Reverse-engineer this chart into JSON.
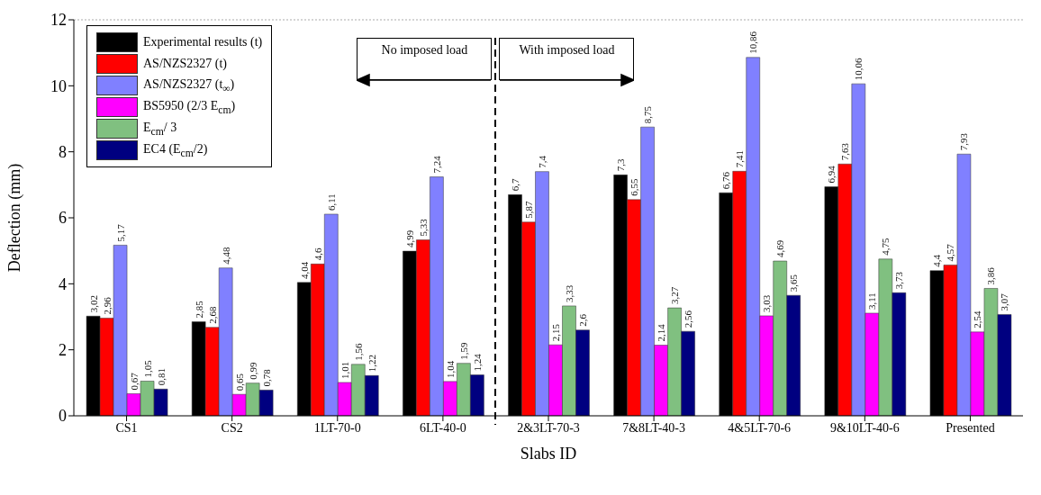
{
  "chart_data": {
    "type": "bar",
    "xlabel": "Slabs ID",
    "ylabel": "Deflection (mm)",
    "categories": [
      "CS1",
      "CS2",
      "1LT-70-0",
      "6LT-40-0",
      "2&3LT-70-3",
      "7&8LT-40-3",
      "4&5LT-70-6",
      "9&10LT-40-6",
      "Presented"
    ],
    "series": [
      {
        "name": "Experimental results (t)",
        "color": "#000000",
        "values": [
          3.02,
          2.85,
          4.04,
          4.99,
          6.7,
          7.3,
          6.76,
          6.94,
          4.4
        ],
        "value_labels": [
          "3,02",
          "2,85",
          "4,04",
          "4,99",
          "6,7",
          "7,3",
          "6,76",
          "6,94",
          "4,4"
        ]
      },
      {
        "name": "AS/NZS2327 (t)",
        "color": "#ff0000",
        "values": [
          2.96,
          2.68,
          4.6,
          5.33,
          5.87,
          6.55,
          7.41,
          7.63,
          4.57
        ],
        "value_labels": [
          "2,96",
          "2,68",
          "4,6",
          "5,33",
          "5,87",
          "6,55",
          "7,41",
          "7,63",
          "4,57"
        ]
      },
      {
        "name": "AS/NZS2327 (t$_{∞}$)",
        "color": "#8080ff",
        "values": [
          5.17,
          4.48,
          6.11,
          7.24,
          7.4,
          8.75,
          10.86,
          10.06,
          7.93
        ],
        "value_labels": [
          "5,17",
          "4,48",
          "6,11",
          "7,24",
          "7,4",
          "8,75",
          "10,86",
          "10,06",
          "7,93"
        ]
      },
      {
        "name": "BS5950 (2/3 E$_{cm}$)",
        "color": "#ff00ff",
        "values": [
          0.67,
          0.65,
          1.01,
          1.04,
          2.15,
          2.14,
          3.03,
          3.11,
          2.54
        ],
        "value_labels": [
          "0,67",
          "0,65",
          "1,01",
          "1,04",
          "2,15",
          "2,14",
          "3,03",
          "3,11",
          "2,54"
        ]
      },
      {
        "name": "E$_{cm}$/ 3",
        "color": "#80c080",
        "values": [
          1.05,
          0.99,
          1.56,
          1.59,
          3.33,
          3.27,
          4.69,
          4.75,
          3.86
        ],
        "value_labels": [
          "1,05",
          "0,99",
          "1,56",
          "1,59",
          "3,33",
          "3,27",
          "4,69",
          "4,75",
          "3,86"
        ]
      },
      {
        "name": "EC4 (E$_{cm}$/2)",
        "color": "#000080",
        "values": [
          0.81,
          0.78,
          1.22,
          1.24,
          2.6,
          2.56,
          3.65,
          3.73,
          3.07
        ],
        "value_labels": [
          "0,81",
          "0,78",
          "1,22",
          "1,24",
          "2,6",
          "2,56",
          "3,65",
          "3,73",
          "3,07"
        ]
      }
    ],
    "ylim": [
      0,
      12
    ],
    "yticks": [
      0,
      2,
      4,
      6,
      8,
      10,
      12
    ],
    "legend": "top left",
    "annotations": [
      "No imposed load",
      "With imposed load"
    ]
  }
}
